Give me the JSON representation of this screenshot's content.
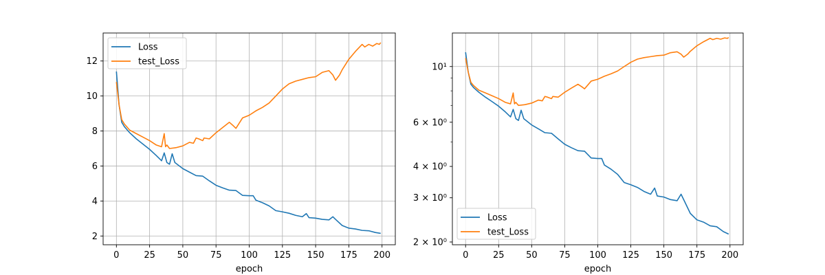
{
  "chart_data": [
    {
      "type": "line",
      "xlabel": "epoch",
      "ylabel": "",
      "xlim": [
        -10,
        210
      ],
      "ylim": [
        1.5,
        13.6
      ],
      "yscale": "linear",
      "grid": true,
      "legend_position": "top-left",
      "xticks": [
        0,
        25,
        50,
        75,
        100,
        125,
        150,
        175,
        200
      ],
      "yticks": [
        2,
        4,
        6,
        8,
        10,
        12
      ],
      "ytick_labels": [
        "2",
        "4",
        "6",
        "8",
        "10",
        "12"
      ],
      "series": [
        {
          "name": "Loss",
          "color": "#1f77b4",
          "x": [
            0,
            2,
            4,
            6,
            10,
            15,
            20,
            25,
            30,
            34,
            36,
            38,
            40,
            42,
            44,
            50,
            55,
            60,
            65,
            70,
            75,
            80,
            85,
            90,
            95,
            100,
            103,
            105,
            110,
            115,
            120,
            125,
            130,
            135,
            140,
            143,
            145,
            150,
            155,
            160,
            163,
            165,
            170,
            175,
            180,
            185,
            190,
            195,
            199
          ],
          "y": [
            11.4,
            9.5,
            8.5,
            8.25,
            7.9,
            7.55,
            7.25,
            6.95,
            6.6,
            6.3,
            6.75,
            6.2,
            6.1,
            6.7,
            6.2,
            5.85,
            5.65,
            5.45,
            5.42,
            5.15,
            4.9,
            4.75,
            4.62,
            4.6,
            4.32,
            4.3,
            4.3,
            4.05,
            3.9,
            3.72,
            3.45,
            3.38,
            3.3,
            3.18,
            3.1,
            3.28,
            3.05,
            3.02,
            2.95,
            2.92,
            3.1,
            2.95,
            2.6,
            2.45,
            2.4,
            2.32,
            2.3,
            2.2,
            2.15
          ]
        },
        {
          "name": "test_Loss",
          "color": "#ff7f0e",
          "x": [
            0,
            2,
            4,
            6,
            10,
            15,
            20,
            25,
            30,
            34,
            36,
            37,
            38,
            40,
            45,
            50,
            55,
            58,
            60,
            62,
            65,
            66,
            70,
            75,
            80,
            85,
            88,
            90,
            95,
            100,
            105,
            110,
            115,
            120,
            125,
            130,
            135,
            140,
            145,
            150,
            155,
            160,
            163,
            165,
            168,
            170,
            175,
            180,
            185,
            187,
            190,
            193,
            196,
            198,
            199
          ],
          "y": [
            10.8,
            9.5,
            8.65,
            8.4,
            8.05,
            7.85,
            7.65,
            7.45,
            7.2,
            7.1,
            7.85,
            7.1,
            7.2,
            7.0,
            7.05,
            7.15,
            7.35,
            7.3,
            7.6,
            7.55,
            7.45,
            7.6,
            7.55,
            7.9,
            8.2,
            8.5,
            8.3,
            8.15,
            8.75,
            8.9,
            9.15,
            9.35,
            9.6,
            10.0,
            10.4,
            10.7,
            10.85,
            10.95,
            11.05,
            11.1,
            11.35,
            11.45,
            11.2,
            10.9,
            11.2,
            11.5,
            12.1,
            12.55,
            12.95,
            12.8,
            12.95,
            12.85,
            13.0,
            12.95,
            13.05
          ]
        }
      ]
    },
    {
      "type": "line",
      "xlabel": "epoch",
      "ylabel": "",
      "xlim": [
        -10,
        210
      ],
      "ylim": [
        1.95,
        13.6
      ],
      "yscale": "log",
      "grid": true,
      "legend_position": "bottom-left",
      "xticks": [
        0,
        25,
        50,
        75,
        100,
        125,
        150,
        175,
        200
      ],
      "yticks": [
        2,
        3,
        4,
        6,
        10
      ],
      "ytick_labels": [
        "2 × 10⁰",
        "3 × 10⁰",
        "4 × 10⁰",
        "6 × 10⁰",
        "10¹"
      ],
      "minor_yticks": [
        5,
        7,
        8,
        9
      ],
      "series": [
        {
          "name": "Loss",
          "color": "#1f77b4",
          "x": [
            0,
            2,
            4,
            6,
            10,
            15,
            20,
            25,
            30,
            34,
            36,
            38,
            40,
            42,
            44,
            50,
            55,
            60,
            65,
            70,
            75,
            80,
            85,
            90,
            95,
            100,
            103,
            105,
            110,
            115,
            120,
            125,
            130,
            135,
            140,
            143,
            145,
            150,
            155,
            160,
            163,
            165,
            170,
            175,
            180,
            185,
            190,
            195,
            199
          ],
          "y": [
            11.4,
            9.5,
            8.5,
            8.25,
            7.9,
            7.55,
            7.25,
            6.95,
            6.6,
            6.3,
            6.75,
            6.2,
            6.1,
            6.7,
            6.2,
            5.85,
            5.65,
            5.45,
            5.42,
            5.15,
            4.9,
            4.75,
            4.62,
            4.6,
            4.32,
            4.3,
            4.3,
            4.05,
            3.9,
            3.72,
            3.45,
            3.38,
            3.3,
            3.18,
            3.1,
            3.28,
            3.05,
            3.02,
            2.95,
            2.92,
            3.1,
            2.95,
            2.6,
            2.45,
            2.4,
            2.32,
            2.3,
            2.2,
            2.15
          ]
        },
        {
          "name": "test_Loss",
          "color": "#ff7f0e",
          "x": [
            0,
            2,
            4,
            6,
            10,
            15,
            20,
            25,
            30,
            34,
            36,
            37,
            38,
            40,
            45,
            50,
            55,
            58,
            60,
            62,
            65,
            66,
            70,
            75,
            80,
            85,
            88,
            90,
            95,
            100,
            105,
            110,
            115,
            120,
            125,
            130,
            135,
            140,
            145,
            150,
            155,
            160,
            163,
            165,
            168,
            170,
            175,
            180,
            185,
            187,
            190,
            193,
            196,
            198,
            199
          ],
          "y": [
            10.8,
            9.5,
            8.65,
            8.4,
            8.05,
            7.85,
            7.65,
            7.45,
            7.2,
            7.1,
            7.85,
            7.1,
            7.2,
            7.0,
            7.05,
            7.15,
            7.35,
            7.3,
            7.6,
            7.55,
            7.45,
            7.6,
            7.55,
            7.9,
            8.2,
            8.5,
            8.3,
            8.15,
            8.75,
            8.9,
            9.15,
            9.35,
            9.6,
            10.0,
            10.4,
            10.7,
            10.85,
            10.95,
            11.05,
            11.1,
            11.35,
            11.45,
            11.2,
            10.9,
            11.2,
            11.5,
            12.1,
            12.55,
            12.95,
            12.8,
            12.95,
            12.85,
            13.0,
            12.95,
            13.05
          ]
        }
      ]
    }
  ]
}
